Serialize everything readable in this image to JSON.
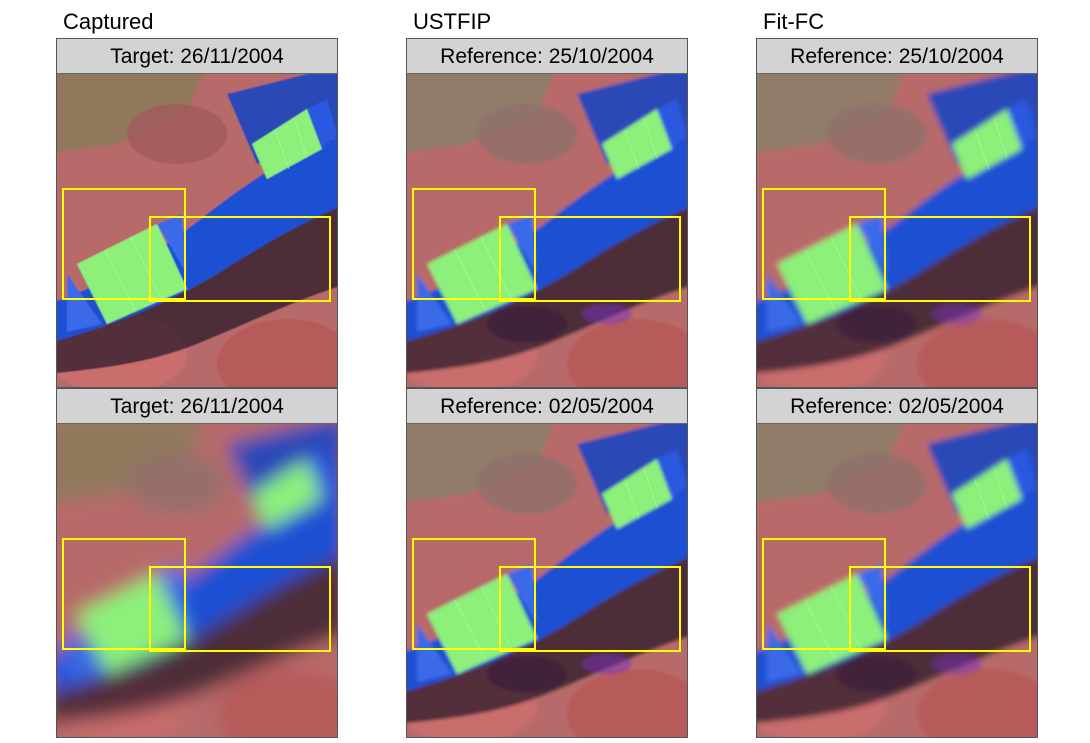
{
  "columns": [
    {
      "title": "Captured"
    },
    {
      "title": "USTFIP"
    },
    {
      "title": "Fit-FC"
    }
  ],
  "panels": [
    {
      "header": "Target: 26/11/2004",
      "style": "sharp"
    },
    {
      "header": "Reference: 25/10/2004",
      "style": "fused"
    },
    {
      "header": "Reference: 25/10/2004",
      "style": "fused-smooth"
    },
    {
      "header": "Target: 26/11/2004",
      "style": "blur"
    },
    {
      "header": "Reference: 02/05/2004",
      "style": "fused"
    },
    {
      "header": "Reference: 02/05/2004",
      "style": "fused-smooth"
    }
  ],
  "colors": {
    "header_bg": "#d3d3d3",
    "box": "#ffff00",
    "land_red": "#c86464",
    "water_blue": "#1e50d2",
    "field_green": "#8cf07a"
  }
}
